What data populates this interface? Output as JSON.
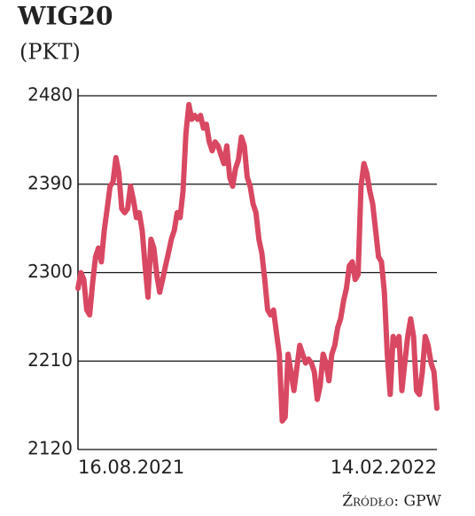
{
  "chart_data": {
    "type": "line",
    "title": "WIG20",
    "subtitle": "(PKT)",
    "source": "Źródło: GPW",
    "categories": [
      "16.08.2021",
      null,
      null,
      null,
      null,
      null,
      null,
      null,
      null,
      null,
      null,
      null,
      null,
      null,
      null,
      null,
      null,
      null,
      null,
      null,
      null,
      null,
      null,
      null,
      null,
      null,
      null,
      null,
      null,
      null,
      null,
      null,
      null,
      null,
      null,
      null,
      null,
      null,
      null,
      null,
      null,
      null,
      null,
      null,
      null,
      null,
      null,
      null,
      null,
      null,
      null,
      null,
      null,
      null,
      null,
      null,
      null,
      null,
      null,
      null,
      null,
      null,
      null,
      null,
      null,
      null,
      null,
      null,
      null,
      null,
      null,
      null,
      null,
      null,
      null,
      null,
      null,
      null,
      null,
      null,
      null,
      null,
      null,
      null,
      null,
      null,
      null,
      null,
      null,
      null,
      null,
      null,
      null,
      null,
      null,
      null,
      null,
      null,
      null,
      null,
      null,
      null,
      null,
      null,
      null,
      null,
      null,
      null,
      null,
      null,
      null,
      null,
      null,
      null,
      null,
      null,
      null,
      null,
      null,
      null,
      null,
      null,
      null,
      "14.02.2022"
    ],
    "series": [
      {
        "name": "WIG20",
        "color": "#d94862",
        "values": [
          2284,
          2300,
          2293,
          2262,
          2257,
          2289,
          2316,
          2325,
          2311,
          2343,
          2365,
          2388,
          2392,
          2417,
          2401,
          2365,
          2361,
          2365,
          2388,
          2374,
          2356,
          2361,
          2343,
          2307,
          2275,
          2334,
          2325,
          2298,
          2280,
          2293,
          2307,
          2320,
          2334,
          2343,
          2361,
          2356,
          2383,
          2442,
          2471,
          2456,
          2460,
          2456,
          2460,
          2447,
          2451,
          2433,
          2424,
          2433,
          2429,
          2420,
          2411,
          2429,
          2397,
          2388,
          2406,
          2415,
          2438,
          2429,
          2397,
          2388,
          2370,
          2361,
          2334,
          2320,
          2293,
          2262,
          2257,
          2262,
          2239,
          2217,
          2149,
          2153,
          2217,
          2199,
          2180,
          2203,
          2226,
          2217,
          2208,
          2212,
          2208,
          2199,
          2171,
          2185,
          2217,
          2208,
          2190,
          2217,
          2226,
          2244,
          2253,
          2271,
          2284,
          2307,
          2311,
          2293,
          2298,
          2388,
          2411,
          2401,
          2383,
          2370,
          2343,
          2316,
          2311,
          2280,
          2217,
          2176,
          2235,
          2226,
          2235,
          2180,
          2208,
          2235,
          2253,
          2235,
          2180,
          2176,
          2199,
          2235,
          2226,
          2208,
          2199,
          2162
        ]
      }
    ],
    "ylim": [
      2120,
      2480
    ],
    "yticks": [
      2120,
      2210,
      2300,
      2390,
      2480
    ],
    "grid": true
  }
}
